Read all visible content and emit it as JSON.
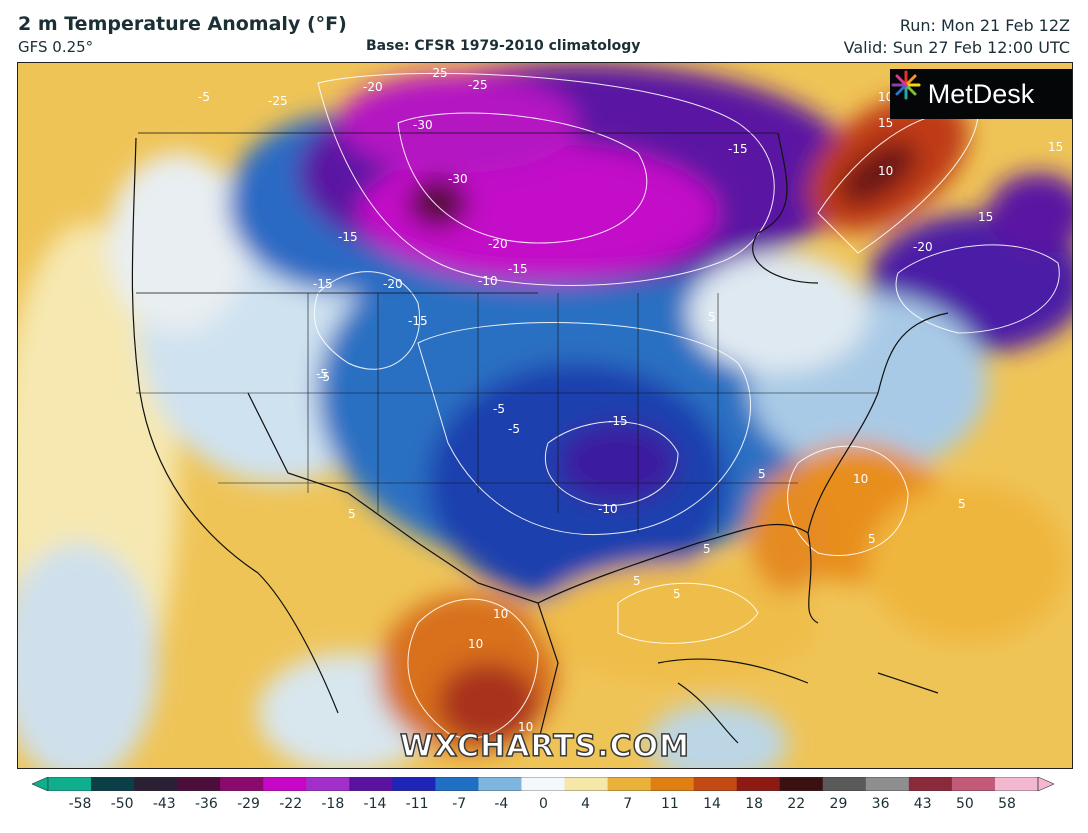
{
  "header": {
    "title": "2 m Temperature Anomaly (°F)",
    "model": "GFS 0.25°",
    "base": "Base: CFSR 1979-2010 climatology",
    "run": "Run: Mon 21 Feb 12Z",
    "valid": "Valid: Sun 27 Feb 12:00 UTC"
  },
  "logo": {
    "text": "MetDesk",
    "icon": "metdesk-pinwheel-icon"
  },
  "watermark": "WXCHARTS.COM",
  "colorbar": {
    "ticks": [
      "-58",
      "-50",
      "-43",
      "-36",
      "-29",
      "-22",
      "-18",
      "-14",
      "-11",
      "-7",
      "-4",
      "0",
      "4",
      "7",
      "11",
      "14",
      "18",
      "22",
      "29",
      "36",
      "43",
      "50",
      "58"
    ],
    "colors": [
      "#0fae8c",
      "#0b3f48",
      "#2a1f33",
      "#4c0d3a",
      "#8a0a6e",
      "#c806c8",
      "#a22fc9",
      "#5a12a0",
      "#1f25b8",
      "#1f6fc4",
      "#7fb6e0",
      "#f4f7fb",
      "#f4e7a8",
      "#eab23a",
      "#e07f12",
      "#c44a14",
      "#8e1a14",
      "#3a1010",
      "#5a5a5a",
      "#8e8e8e",
      "#8a2a3a",
      "#c25a78",
      "#f2b8d0"
    ],
    "left_color": "#0fae8c",
    "right_color": "#f6b6d2"
  },
  "map": {
    "contour_labels": [
      "-5",
      "-25",
      "-20",
      "-25",
      "-25",
      "-30",
      "-30",
      "-20",
      "-15",
      "-10",
      "-15",
      "-20",
      "-15",
      "-5",
      "-15",
      "-15",
      "-15",
      "-10",
      "-5",
      "-5",
      "10",
      "15",
      "10",
      "15",
      "15",
      "-20",
      "5",
      "5",
      "5",
      "10",
      "5",
      "5",
      "5",
      "10",
      "10",
      "10",
      "5",
      "5",
      "-5"
    ]
  }
}
